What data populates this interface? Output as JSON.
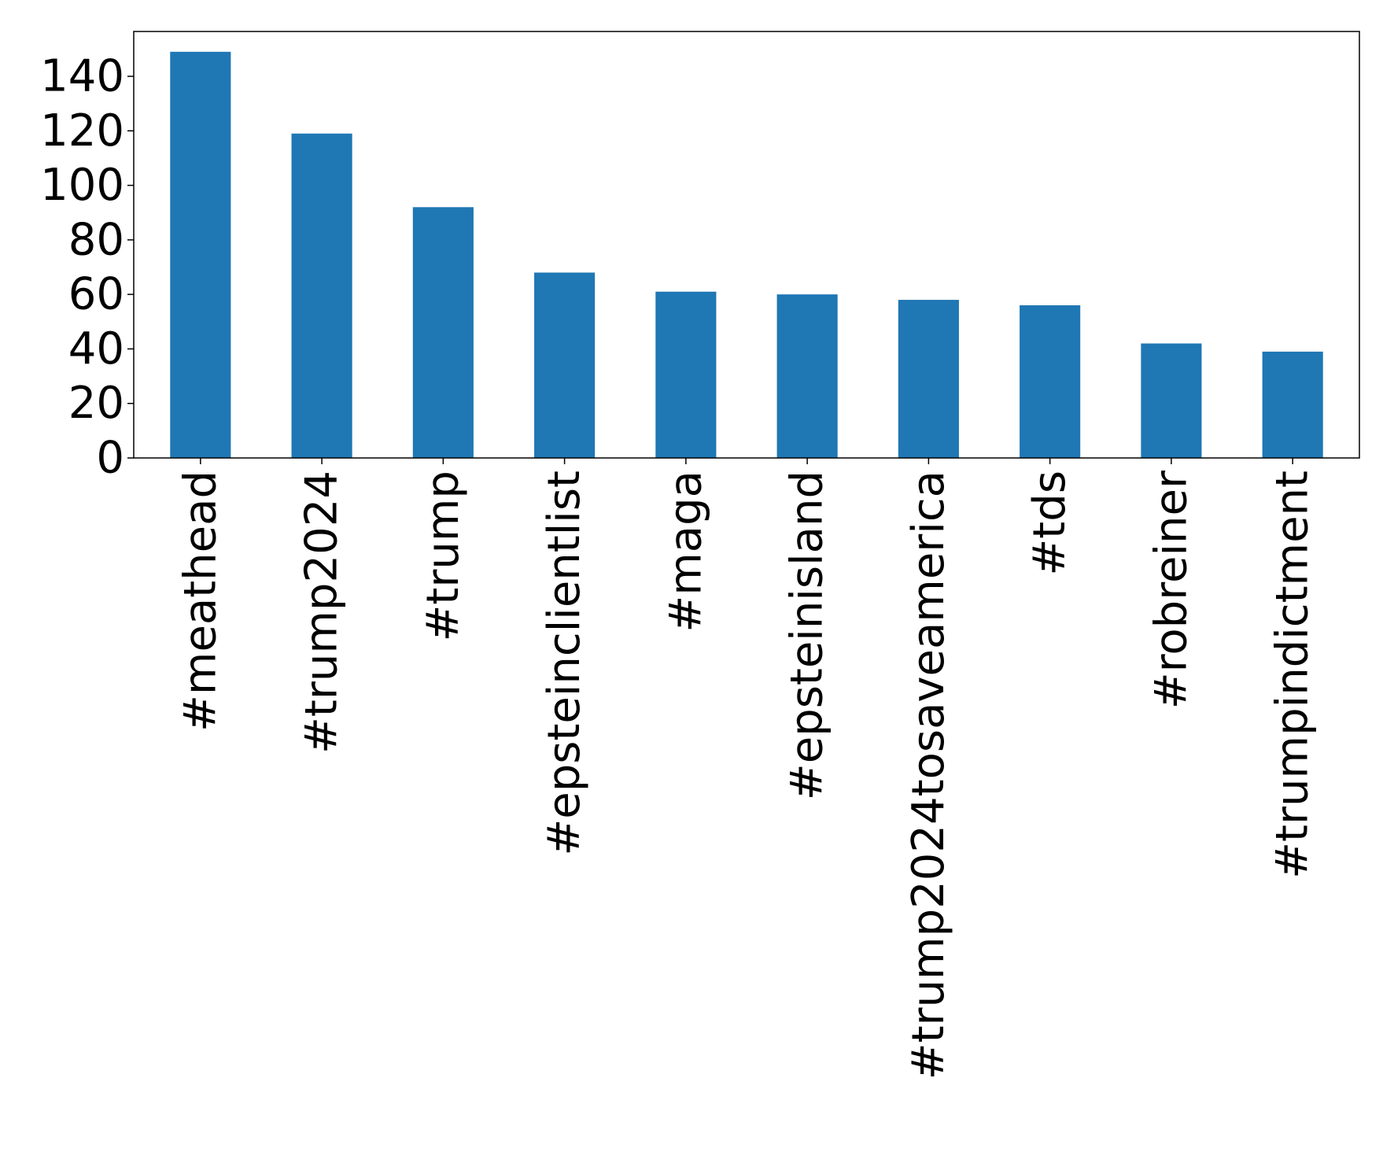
{
  "chart_data": {
    "type": "bar",
    "title": "",
    "xlabel": "",
    "ylabel": "",
    "categories": [
      "#meathead",
      "#trump2024",
      "#trump",
      "#epsteinclientlist",
      "#maga",
      "#epsteinisland",
      "#trump2024tosaveamerica",
      "#tds",
      "#robreiner",
      "#trumpindictment"
    ],
    "values": [
      149,
      119,
      92,
      68,
      61,
      60,
      58,
      56,
      42,
      39
    ],
    "ylim": [
      0,
      156.45
    ],
    "yticks": [
      0,
      20,
      40,
      60,
      80,
      100,
      120,
      140
    ],
    "bar_color": "#1f77b4",
    "grid": false,
    "legend": "none"
  }
}
